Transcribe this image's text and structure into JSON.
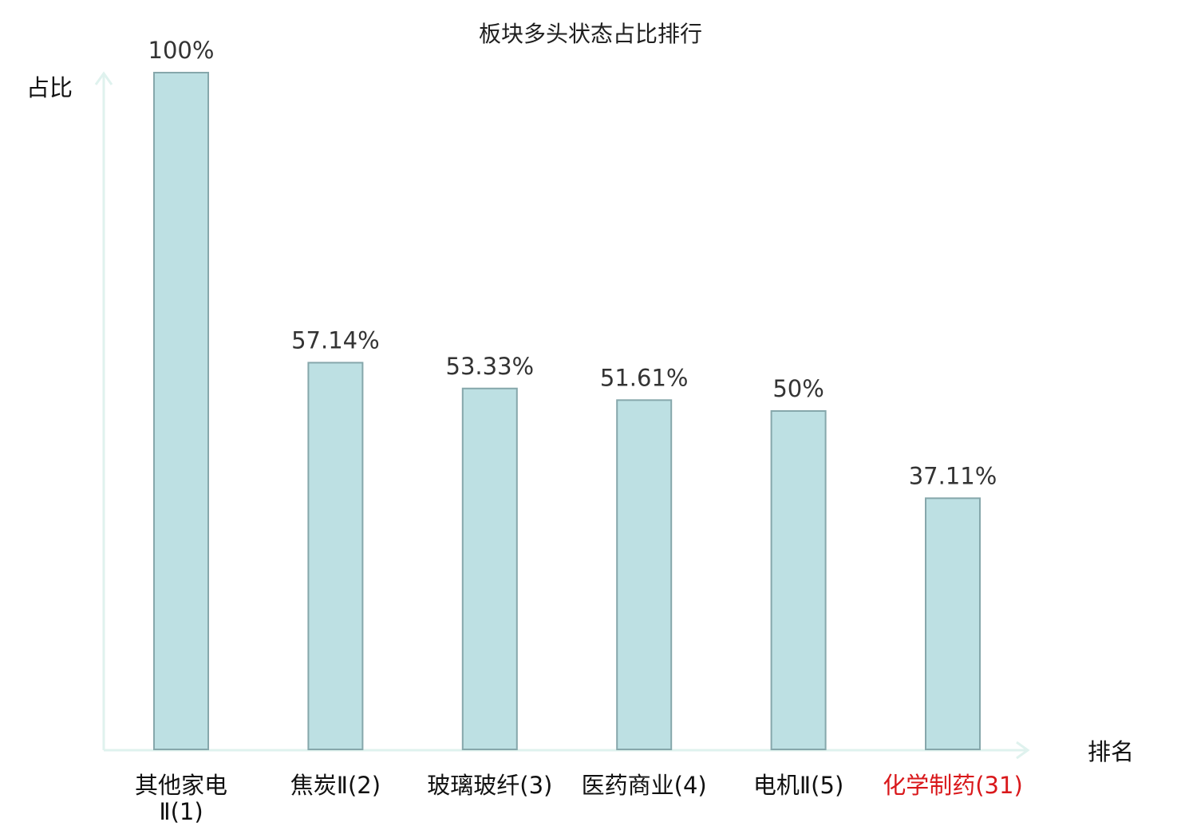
{
  "chart_data": {
    "type": "bar",
    "title": "板块多头状态占比排行",
    "ylabel": "占比",
    "xlabel": "排名",
    "ylim": [
      0,
      100
    ],
    "categories": [
      {
        "lines": [
          "其他家电",
          "Ⅱ(1)"
        ],
        "highlight": false
      },
      {
        "lines": [
          "焦炭Ⅱ(2)"
        ],
        "highlight": false
      },
      {
        "lines": [
          "玻璃玻纤(3)"
        ],
        "highlight": false
      },
      {
        "lines": [
          "医药商业(4)"
        ],
        "highlight": false
      },
      {
        "lines": [
          "电机Ⅱ(5)"
        ],
        "highlight": false
      },
      {
        "lines": [
          "化学制药(31)"
        ],
        "highlight": true
      }
    ],
    "values": [
      100,
      57.14,
      53.33,
      51.61,
      50,
      37.11
    ],
    "value_labels": [
      "100%",
      "57.14%",
      "53.33%",
      "51.61%",
      "50%",
      "37.11%"
    ],
    "grid": false,
    "colors": {
      "bar_fill": "#bde0e3",
      "bar_stroke": "#86a7ab",
      "axis": "#dff2ee",
      "highlight_text": "#d9181b",
      "normal_text": "#111111"
    }
  }
}
